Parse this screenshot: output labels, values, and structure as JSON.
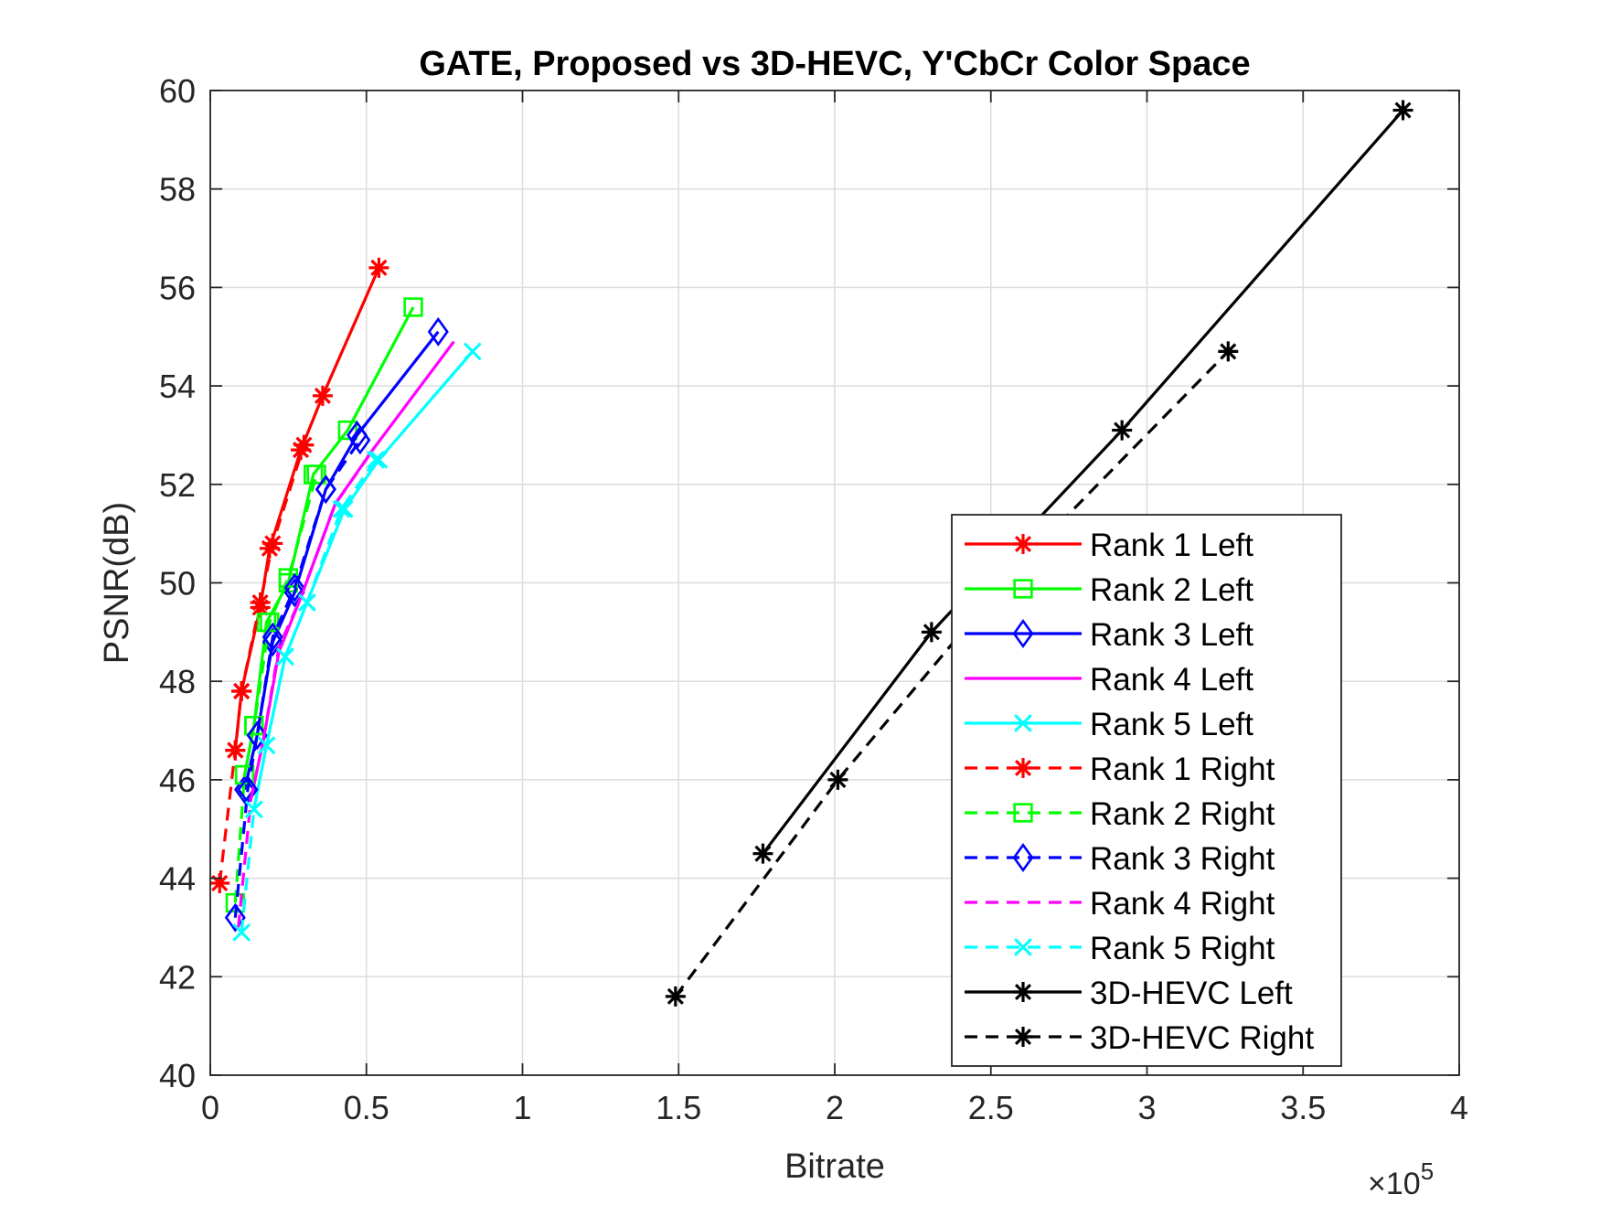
{
  "chart_data": {
    "type": "line",
    "title": "GATE, Proposed vs 3D-HEVC, Y'CbCr Color Space",
    "xlabel": "Bitrate",
    "ylabel": "PSNR(dB)",
    "x_exponent_base": "×10",
    "x_exponent_power": "5",
    "xlim": [
      0,
      4
    ],
    "ylim": [
      40,
      60
    ],
    "x_ticks": [
      0,
      0.5,
      1,
      1.5,
      2,
      2.5,
      3,
      3.5,
      4
    ],
    "x_tick_labels": [
      "0",
      "0.5",
      "1",
      "1.5",
      "2",
      "2.5",
      "3",
      "3.5",
      "4"
    ],
    "y_ticks": [
      40,
      42,
      44,
      46,
      48,
      50,
      52,
      54,
      56,
      58,
      60
    ],
    "y_tick_labels": [
      "40",
      "42",
      "44",
      "46",
      "48",
      "50",
      "52",
      "54",
      "56",
      "58",
      "60"
    ],
    "grid": true,
    "legend_position": "bottom-right",
    "series": [
      {
        "name": "Rank 1 Left",
        "color": "#ff0000",
        "dash": "solid",
        "marker": "asterisk",
        "x": [
          0.08,
          0.1,
          0.16,
          0.19,
          0.29,
          0.36,
          0.54
        ],
        "y": [
          46.6,
          47.8,
          49.5,
          50.7,
          52.7,
          53.8,
          56.4
        ]
      },
      {
        "name": "Rank 2 Left",
        "color": "#00ff00",
        "dash": "solid",
        "marker": "square",
        "x": [
          0.11,
          0.14,
          0.18,
          0.25,
          0.33,
          0.44,
          0.65
        ],
        "y": [
          46.1,
          47.1,
          49.2,
          50.0,
          52.2,
          53.1,
          55.6
        ]
      },
      {
        "name": "Rank 3 Left",
        "color": "#0000ff",
        "dash": "solid",
        "marker": "diamond",
        "x": [
          0.11,
          0.15,
          0.2,
          0.27,
          0.37,
          0.47,
          0.73
        ],
        "y": [
          45.8,
          46.9,
          48.8,
          49.8,
          51.9,
          53.0,
          55.1
        ]
      },
      {
        "name": "Rank 4 Left",
        "color": "#ff00ff",
        "dash": "solid",
        "marker": "none",
        "x": [
          0.13,
          0.17,
          0.22,
          0.29,
          0.4,
          0.52,
          0.78
        ],
        "y": [
          45.6,
          46.8,
          48.6,
          49.7,
          51.6,
          52.7,
          54.9
        ]
      },
      {
        "name": "Rank 5 Left",
        "color": "#00ffff",
        "dash": "solid",
        "marker": "x",
        "x": [
          0.14,
          0.18,
          0.24,
          0.31,
          0.43,
          0.54,
          0.84
        ],
        "y": [
          45.4,
          46.7,
          48.5,
          49.6,
          51.5,
          52.5,
          54.7
        ]
      },
      {
        "name": "Rank 1 Right",
        "color": "#ff0000",
        "dash": "dashed",
        "marker": "asterisk",
        "x": [
          0.03,
          0.08,
          0.1,
          0.16,
          0.2,
          0.3
        ],
        "y": [
          43.9,
          46.6,
          47.8,
          49.6,
          50.8,
          52.8
        ]
      },
      {
        "name": "Rank 2 Right",
        "color": "#00ff00",
        "dash": "dashed",
        "marker": "square",
        "x": [
          0.08,
          0.11,
          0.14,
          0.19,
          0.25,
          0.34
        ],
        "y": [
          43.5,
          46.1,
          47.1,
          49.2,
          50.1,
          52.2
        ]
      },
      {
        "name": "Rank 3 Right",
        "color": "#0000ff",
        "dash": "dashed",
        "marker": "diamond",
        "x": [
          0.08,
          0.12,
          0.15,
          0.2,
          0.27,
          0.37,
          0.48
        ],
        "y": [
          43.2,
          45.8,
          46.9,
          48.9,
          49.9,
          51.9,
          52.9
        ]
      },
      {
        "name": "Rank 4 Right",
        "color": "#ff00ff",
        "dash": "dashed",
        "marker": "none",
        "x": [
          0.09,
          0.13,
          0.17,
          0.22,
          0.29,
          0.4,
          0.51
        ],
        "y": [
          43.0,
          45.6,
          46.8,
          48.7,
          49.7,
          51.6,
          52.6
        ]
      },
      {
        "name": "Rank 5 Right",
        "color": "#00ffff",
        "dash": "dashed",
        "marker": "x",
        "x": [
          0.1,
          0.14,
          0.18,
          0.24,
          0.31,
          0.42,
          0.53
        ],
        "y": [
          42.9,
          45.4,
          46.7,
          48.5,
          49.6,
          51.5,
          52.5
        ]
      },
      {
        "name": "3D-HEVC Left",
        "color": "#000000",
        "dash": "solid",
        "marker": "asterisk",
        "x": [
          1.77,
          2.31,
          2.92,
          3.82
        ],
        "y": [
          44.5,
          49.0,
          53.1,
          59.6
        ]
      },
      {
        "name": "3D-HEVC Right",
        "color": "#000000",
        "dash": "dashed",
        "marker": "asterisk",
        "x": [
          1.49,
          2.01,
          2.58,
          3.26
        ],
        "y": [
          41.6,
          46.0,
          50.3,
          54.7
        ]
      }
    ]
  }
}
